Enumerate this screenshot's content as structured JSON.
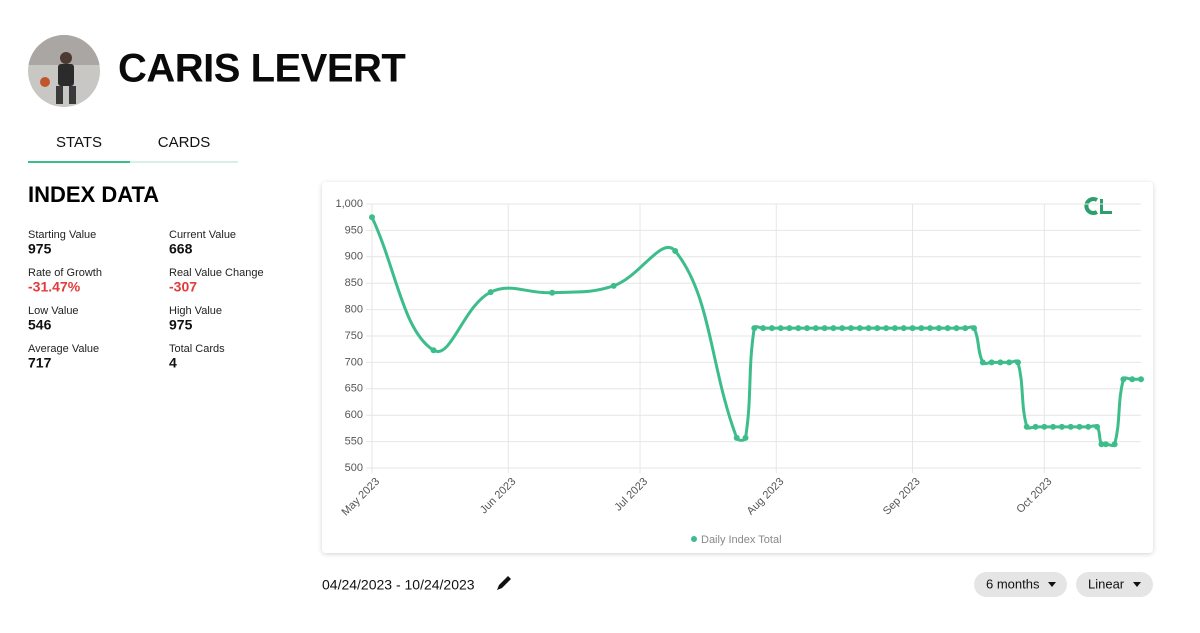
{
  "header": {
    "name": "CARIS LEVERT"
  },
  "tabs": [
    "STATS",
    "CARDS"
  ],
  "index_data": {
    "title": "INDEX DATA",
    "stats": [
      {
        "label": "Starting Value",
        "value": "975"
      },
      {
        "label": "Current Value",
        "value": "668"
      },
      {
        "label": "Rate of Growth",
        "value": "-31.47%"
      },
      {
        "label": "Real Value Change",
        "value": "-307"
      },
      {
        "label": "Low Value",
        "value": "546"
      },
      {
        "label": "High Value",
        "value": "975"
      },
      {
        "label": "Average Value",
        "value": "717"
      },
      {
        "label": "Total Cards",
        "value": "4"
      }
    ]
  },
  "chart_data": {
    "type": "line",
    "x": [
      "2023-05-01",
      "2023-05-15",
      "2023-05-28",
      "2023-06-11",
      "2023-06-25",
      "2023-07-09",
      "2023-07-23",
      "2023-07-25",
      "2023-07-27",
      "2023-07-29",
      "2023-07-31",
      "2023-08-02",
      "2023-08-04",
      "2023-08-06",
      "2023-08-08",
      "2023-08-10",
      "2023-08-12",
      "2023-08-14",
      "2023-08-16",
      "2023-08-18",
      "2023-08-20",
      "2023-08-22",
      "2023-08-24",
      "2023-08-26",
      "2023-08-28",
      "2023-08-30",
      "2023-09-01",
      "2023-09-03",
      "2023-09-05",
      "2023-09-07",
      "2023-09-09",
      "2023-09-11",
      "2023-09-13",
      "2023-09-15",
      "2023-09-17",
      "2023-09-19",
      "2023-09-21",
      "2023-09-23",
      "2023-09-25",
      "2023-09-27",
      "2023-09-29",
      "2023-10-01",
      "2023-10-03",
      "2023-10-05",
      "2023-10-07",
      "2023-10-09",
      "2023-10-11",
      "2023-10-13",
      "2023-10-14",
      "2023-10-15",
      "2023-10-17",
      "2023-10-19",
      "2023-10-21",
      "2023-10-23"
    ],
    "series": [
      {
        "name": "Daily Index Total",
        "color": "#3dbd8b",
        "values": [
          975,
          723,
          833,
          832,
          845,
          911,
          557,
          557,
          765,
          765,
          765,
          765,
          765,
          765,
          765,
          765,
          765,
          765,
          765,
          765,
          765,
          765,
          765,
          765,
          765,
          765,
          765,
          765,
          765,
          765,
          765,
          765,
          765,
          765,
          700,
          700,
          700,
          700,
          700,
          578,
          578,
          578,
          578,
          578,
          578,
          578,
          578,
          578,
          545,
          545,
          545,
          668,
          668,
          668
        ]
      }
    ],
    "xlim": [
      "2023-05-01",
      "2023-10-23"
    ],
    "xticks": [
      {
        "value": "2023-05-01",
        "label": "May 2023"
      },
      {
        "value": "2023-06-01",
        "label": "Jun 2023"
      },
      {
        "value": "2023-07-01",
        "label": "Jul 2023"
      },
      {
        "value": "2023-08-01",
        "label": "Aug 2023"
      },
      {
        "value": "2023-09-01",
        "label": "Sep 2023"
      },
      {
        "value": "2023-10-01",
        "label": "Oct 2023"
      }
    ],
    "ylim": [
      500,
      1000
    ],
    "yticks": [
      500,
      550,
      600,
      650,
      700,
      750,
      800,
      850,
      900,
      950,
      {
        "value": 1000,
        "label": "1,000"
      }
    ],
    "grid": true
  },
  "date_range": "04/24/2023 - 10/24/2023",
  "controls": [
    "6 months",
    "Linear"
  ]
}
